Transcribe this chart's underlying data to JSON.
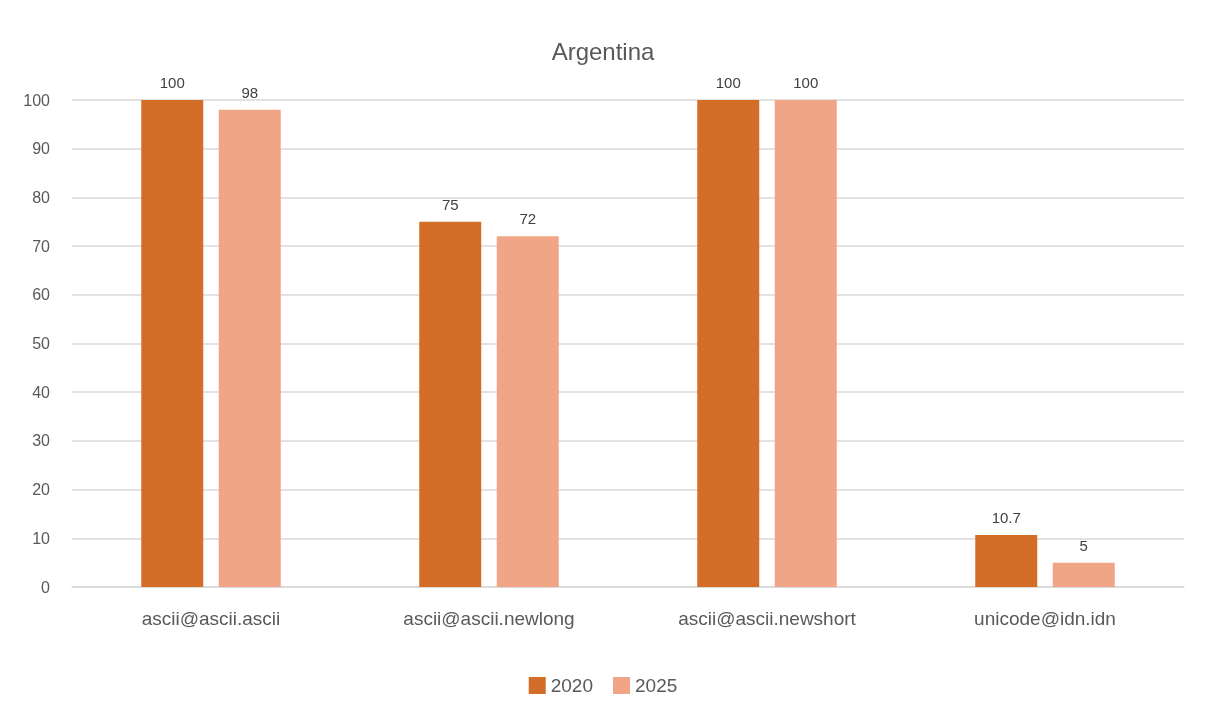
{
  "chart_data": {
    "type": "bar",
    "title": "Argentina",
    "categories": [
      "ascii@ascii.ascii",
      "ascii@ascii.newlong",
      "ascii@ascii.newshort",
      "unicode@idn.idn"
    ],
    "series": [
      {
        "name": "2020",
        "color": "#d36e28",
        "values": [
          100,
          75,
          100,
          10.7
        ]
      },
      {
        "name": "2025",
        "color": "#f0a587",
        "values": [
          98,
          72,
          100,
          5
        ]
      }
    ],
    "ylim": [
      0,
      100
    ],
    "yticks": [
      0,
      10,
      20,
      30,
      40,
      50,
      60,
      70,
      80,
      90,
      100
    ],
    "grid": "y",
    "legend": "bottom",
    "data_labels": true
  }
}
